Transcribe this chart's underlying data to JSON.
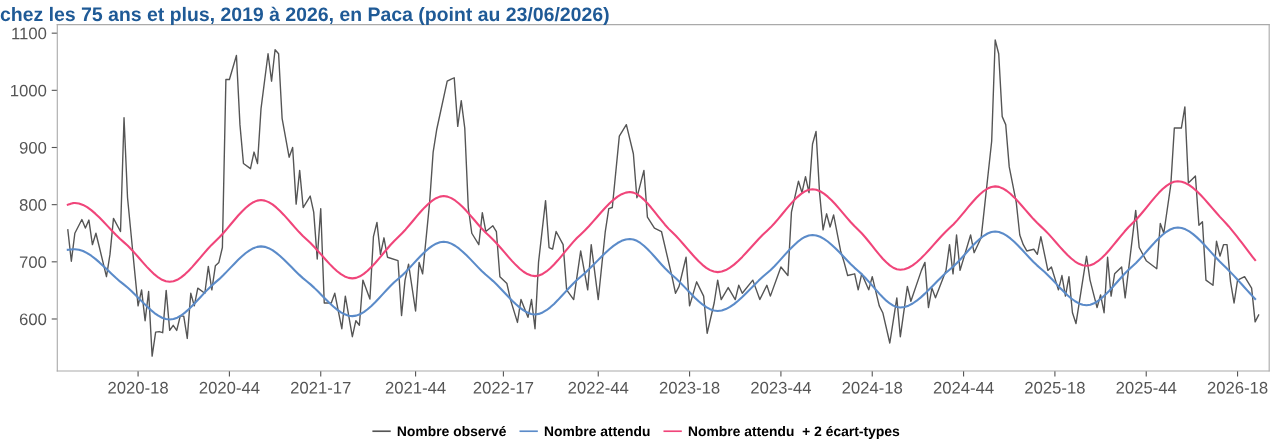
{
  "chart_data": {
    "type": "line",
    "title": "chez les 75 ans et plus, 2019 à 2026, en Paca (point au 23/06/2026)",
    "xlim": [
      "2019-11-18",
      "2026-06-29"
    ],
    "ylim": [
      509,
      1115
    ],
    "xticks": [
      {
        "value": "2020-04-27",
        "label": "2020-18"
      },
      {
        "value": "2020-10-26",
        "label": "2020-44"
      },
      {
        "value": "2021-04-26",
        "label": "2021-17"
      },
      {
        "value": "2021-11-01",
        "label": "2021-44"
      },
      {
        "value": "2022-04-25",
        "label": "2022-17"
      },
      {
        "value": "2022-10-31",
        "label": "2022-44"
      },
      {
        "value": "2023-05-01",
        "label": "2023-18"
      },
      {
        "value": "2023-10-30",
        "label": "2023-44"
      },
      {
        "value": "2024-04-29",
        "label": "2024-18"
      },
      {
        "value": "2024-10-28",
        "label": "2024-44"
      },
      {
        "value": "2025-04-28",
        "label": "2025-18"
      },
      {
        "value": "2025-10-27",
        "label": "2025-44"
      },
      {
        "value": "2026-04-27",
        "label": "2026-18"
      }
    ],
    "yticks": [
      600,
      700,
      800,
      900,
      1000,
      1100
    ],
    "grid": false,
    "legend": "bottom",
    "marker": "none",
    "line_style": "solid",
    "series": [
      {
        "name": "Nombre observé",
        "color": "#555555",
        "x": [
          "2019-12-09",
          "2019-12-16",
          "2019-12-23",
          "2020-01-06",
          "2020-01-13",
          "2020-01-20",
          "2020-01-27",
          "2020-02-03",
          "2020-02-10",
          "2020-02-24",
          "2020-03-02",
          "2020-03-09",
          "2020-03-23",
          "2020-03-30",
          "2020-04-06",
          "2020-04-20",
          "2020-04-27",
          "2020-05-04",
          "2020-05-11",
          "2020-05-18",
          "2020-05-25",
          "2020-06-01",
          "2020-06-08",
          "2020-06-15",
          "2020-06-22",
          "2020-06-29",
          "2020-07-06",
          "2020-07-13",
          "2020-07-20",
          "2020-07-27",
          "2020-08-03",
          "2020-08-10",
          "2020-08-17",
          "2020-08-24",
          "2020-09-07",
          "2020-09-14",
          "2020-09-21",
          "2020-09-28",
          "2020-10-05",
          "2020-10-12",
          "2020-10-19",
          "2020-10-26",
          "2020-11-09",
          "2020-11-16",
          "2020-11-23",
          "2020-12-07",
          "2020-12-14",
          "2020-12-21",
          "2020-12-28",
          "2021-01-11",
          "2021-01-18",
          "2021-01-25",
          "2021-02-01",
          "2021-02-08",
          "2021-02-22",
          "2021-03-01",
          "2021-03-08",
          "2021-03-15",
          "2021-03-22",
          "2021-04-05",
          "2021-04-12",
          "2021-04-19",
          "2021-04-26",
          "2021-05-03",
          "2021-05-17",
          "2021-05-24",
          "2021-06-07",
          "2021-06-14",
          "2021-06-28",
          "2021-07-05",
          "2021-07-12",
          "2021-07-19",
          "2021-08-02",
          "2021-08-09",
          "2021-08-16",
          "2021-08-23",
          "2021-08-30",
          "2021-09-06",
          "2021-09-27",
          "2021-10-04",
          "2021-10-11",
          "2021-10-18",
          "2021-11-01",
          "2021-11-08",
          "2021-11-15",
          "2021-11-29",
          "2021-12-06",
          "2021-12-13",
          "2022-01-03",
          "2022-01-10",
          "2022-01-17",
          "2022-01-24",
          "2022-01-31",
          "2022-02-07",
          "2022-02-14",
          "2022-02-21",
          "2022-03-07",
          "2022-03-14",
          "2022-03-21",
          "2022-04-04",
          "2022-04-11",
          "2022-04-18",
          "2022-05-02",
          "2022-05-09",
          "2022-05-23",
          "2022-05-30",
          "2022-06-13",
          "2022-06-20",
          "2022-06-27",
          "2022-07-04",
          "2022-07-18",
          "2022-07-25",
          "2022-08-01",
          "2022-08-08",
          "2022-08-22",
          "2022-08-29",
          "2022-09-12",
          "2022-09-26",
          "2022-10-10",
          "2022-10-17",
          "2022-10-31",
          "2022-11-14",
          "2022-11-21",
          "2022-11-28",
          "2022-12-12",
          "2022-12-26",
          "2023-01-09",
          "2023-01-16",
          "2023-01-30",
          "2023-02-06",
          "2023-02-20",
          "2023-03-06",
          "2023-03-27",
          "2023-04-03",
          "2023-04-10",
          "2023-04-24",
          "2023-05-01",
          "2023-05-15",
          "2023-05-29",
          "2023-06-05",
          "2023-06-19",
          "2023-06-26",
          "2023-07-03",
          "2023-07-17",
          "2023-07-31",
          "2023-08-07",
          "2023-08-14",
          "2023-09-04",
          "2023-09-18",
          "2023-10-02",
          "2023-10-09",
          "2023-10-30",
          "2023-11-13",
          "2023-11-20",
          "2023-12-04",
          "2023-12-11",
          "2023-12-18",
          "2023-12-25",
          "2024-01-01",
          "2024-01-08",
          "2024-01-15",
          "2024-01-22",
          "2024-01-29",
          "2024-02-05",
          "2024-02-12",
          "2024-02-26",
          "2024-03-04",
          "2024-03-11",
          "2024-03-25",
          "2024-04-01",
          "2024-04-08",
          "2024-04-22",
          "2024-04-29",
          "2024-05-13",
          "2024-05-20",
          "2024-06-03",
          "2024-06-17",
          "2024-06-24",
          "2024-07-08",
          "2024-07-15",
          "2024-08-05",
          "2024-08-12",
          "2024-08-19",
          "2024-08-26",
          "2024-09-02",
          "2024-09-23",
          "2024-09-30",
          "2024-10-07",
          "2024-10-14",
          "2024-10-21",
          "2024-11-11",
          "2024-11-18",
          "2024-12-02",
          "2024-12-09",
          "2024-12-23",
          "2024-12-30",
          "2025-01-06",
          "2025-01-13",
          "2025-01-20",
          "2025-01-27",
          "2025-02-10",
          "2025-02-17",
          "2025-02-24",
          "2025-03-03",
          "2025-03-17",
          "2025-03-24",
          "2025-03-31",
          "2025-04-14",
          "2025-04-21",
          "2025-05-05",
          "2025-05-12",
          "2025-05-19",
          "2025-05-26",
          "2025-06-02",
          "2025-06-09",
          "2025-06-30",
          "2025-07-07",
          "2025-07-21",
          "2025-07-28",
          "2025-08-04",
          "2025-08-11",
          "2025-08-18",
          "2025-08-25",
          "2025-09-08",
          "2025-09-15",
          "2025-10-06",
          "2025-10-13",
          "2025-10-27",
          "2025-11-17",
          "2025-11-24",
          "2025-12-01",
          "2025-12-15",
          "2025-12-22",
          "2026-01-05",
          "2026-01-12",
          "2026-01-19",
          "2026-02-02",
          "2026-02-09",
          "2026-02-16",
          "2026-02-23",
          "2026-03-09",
          "2026-03-16",
          "2026-03-23",
          "2026-03-30",
          "2026-04-06",
          "2026-04-13",
          "2026-04-20",
          "2026-04-27",
          "2026-05-11",
          "2026-05-25",
          "2026-06-01",
          "2026-06-08"
        ],
        "values": [
          756,
          701,
          750,
          774,
          759,
          773,
          730,
          750,
          725,
          674,
          713,
          776,
          753,
          952,
          812,
          685,
          623,
          651,
          597,
          648,
          535,
          577,
          578,
          576,
          650,
          580,
          589,
          580,
          605,
          605,
          566,
          645,
          623,
          654,
          645,
          692,
          651,
          693,
          699,
          725,
          1019,
          1019,
          1061,
          940,
          872,
          863,
          892,
          872,
          968,
          1064,
          1016,
          1071,
          1064,
          951,
          883,
          900,
          801,
          860,
          795,
          815,
          787,
          705,
          793,
          628,
          628,
          645,
          583,
          640,
          569,
          597,
          589,
          668,
          635,
          744,
          769,
          713,
          742,
          708,
          702,
          606,
          668,
          696,
          614,
          699,
          679,
          804,
          892,
          931,
          1016,
          1019,
          1022,
          937,
          982,
          934,
          795,
          750,
          730,
          786,
          753,
          763,
          753,
          674,
          662,
          634,
          594,
          634,
          603,
          634,
          583,
          699,
          807,
          725,
          722,
          753,
          730,
          651,
          634,
          719,
          651,
          730,
          634,
          753,
          793,
          795,
          920,
          940,
          889,
          812,
          860,
          778,
          759,
          753,
          674,
          645,
          657,
          708,
          623,
          665,
          640,
          575,
          628,
          668,
          634,
          655,
          634,
          659,
          645,
          668,
          634,
          659,
          640,
          691,
          676,
          787,
          841,
          821,
          849,
          821,
          906,
          928,
          821,
          756,
          784,
          761,
          782,
          719,
          699,
          676,
          679,
          651,
          679,
          651,
          674,
          623,
          611,
          558,
          637,
          569,
          657,
          631,
          685,
          699,
          620,
          654,
          637,
          685,
          730,
          679,
          747,
          685,
          747,
          716,
          742,
          798,
          911,
          1088,
          1064,
          954,
          940,
          866,
          804,
          747,
          730,
          719,
          722,
          713,
          744,
          685,
          691,
          651,
          676,
          640,
          674,
          611,
          592,
          710,
          668,
          620,
          642,
          611,
          708,
          640,
          679,
          691,
          637,
          790,
          725,
          702,
          688,
          767,
          750,
          835,
          934,
          934,
          971,
          838,
          850,
          764,
          770,
          668,
          659,
          736,
          710,
          730,
          730,
          665,
          628,
          668,
          674,
          654,
          595,
          607
        ]
      },
      {
        "name": "Nombre attendu",
        "color": "#5b8bc9",
        "x": [
          "2019-12-09",
          "2019-12-23",
          "2020-03-30",
          "2020-06-29",
          "2020-09-28",
          "2020-12-28",
          "2021-03-29",
          "2021-06-28",
          "2021-09-27",
          "2021-12-27",
          "2022-03-28",
          "2022-06-27",
          "2022-09-26",
          "2023-01-02",
          "2023-03-27",
          "2023-06-26",
          "2023-10-02",
          "2024-01-01",
          "2024-04-01",
          "2024-06-24",
          "2024-09-30",
          "2024-12-30",
          "2025-03-31",
          "2025-06-30",
          "2025-09-29",
          "2025-12-29",
          "2026-03-30",
          "2026-06-01"
        ],
        "values": [
          721,
          722,
          660,
          599,
          664,
          727,
          666,
          605,
          670,
          735,
          672,
          608,
          674,
          740,
          677,
          614,
          680,
          747,
          684,
          620,
          686,
          753,
          688,
          624,
          692,
          760,
          694,
          635
        ]
      },
      {
        "name": "Nombre attendu  + 2 écart-types",
        "color": "#f0457a",
        "x": [
          "2019-12-09",
          "2019-12-23",
          "2020-03-30",
          "2020-06-29",
          "2020-09-28",
          "2020-12-28",
          "2021-03-29",
          "2021-06-28",
          "2021-09-27",
          "2021-12-27",
          "2022-03-28",
          "2022-06-27",
          "2022-09-26",
          "2023-01-02",
          "2023-03-27",
          "2023-06-26",
          "2023-10-02",
          "2024-01-01",
          "2024-04-01",
          "2024-06-24",
          "2024-09-30",
          "2024-12-30",
          "2025-03-31",
          "2025-06-30",
          "2025-09-29",
          "2025-12-29",
          "2026-03-30",
          "2026-06-01"
        ],
        "values": [
          800,
          803,
          734,
          665,
          736,
          808,
          739,
          671,
          743,
          815,
          745,
          675,
          748,
          822,
          752,
          682,
          754,
          827,
          756,
          686,
          759,
          832,
          762,
          693,
          767,
          841,
          772,
          703
        ]
      }
    ]
  }
}
